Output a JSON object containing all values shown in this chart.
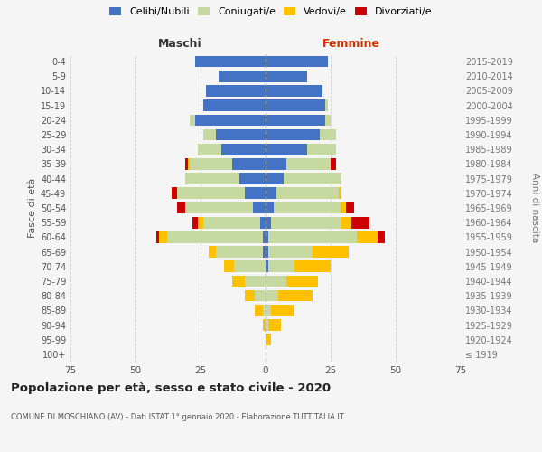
{
  "age_groups": [
    "100+",
    "95-99",
    "90-94",
    "85-89",
    "80-84",
    "75-79",
    "70-74",
    "65-69",
    "60-64",
    "55-59",
    "50-54",
    "45-49",
    "40-44",
    "35-39",
    "30-34",
    "25-29",
    "20-24",
    "15-19",
    "10-14",
    "5-9",
    "0-4"
  ],
  "birth_years": [
    "≤ 1919",
    "1920-1924",
    "1925-1929",
    "1930-1934",
    "1935-1939",
    "1940-1944",
    "1945-1949",
    "1950-1954",
    "1955-1959",
    "1960-1964",
    "1965-1969",
    "1970-1974",
    "1975-1979",
    "1980-1984",
    "1985-1989",
    "1990-1994",
    "1995-1999",
    "2000-2004",
    "2005-2009",
    "2010-2014",
    "2015-2019"
  ],
  "male": {
    "celibi": [
      0,
      0,
      0,
      0,
      0,
      0,
      0,
      1,
      1,
      2,
      5,
      8,
      10,
      13,
      17,
      19,
      27,
      24,
      23,
      18,
      27
    ],
    "coniugati": [
      0,
      0,
      0,
      1,
      4,
      8,
      12,
      18,
      37,
      22,
      26,
      26,
      21,
      16,
      9,
      5,
      2,
      0,
      0,
      0,
      0
    ],
    "vedovi": [
      0,
      0,
      1,
      3,
      4,
      5,
      4,
      3,
      3,
      2,
      0,
      0,
      0,
      1,
      0,
      0,
      0,
      0,
      0,
      0,
      0
    ],
    "divorziati": [
      0,
      0,
      0,
      0,
      0,
      0,
      0,
      0,
      1,
      2,
      3,
      2,
      0,
      1,
      0,
      0,
      0,
      0,
      0,
      0,
      0
    ]
  },
  "female": {
    "nubili": [
      0,
      0,
      0,
      0,
      0,
      0,
      1,
      1,
      1,
      2,
      3,
      4,
      7,
      8,
      16,
      21,
      23,
      23,
      22,
      16,
      24
    ],
    "coniugate": [
      0,
      0,
      1,
      2,
      5,
      8,
      10,
      17,
      34,
      27,
      26,
      24,
      22,
      17,
      11,
      6,
      2,
      1,
      0,
      0,
      0
    ],
    "vedove": [
      0,
      2,
      5,
      9,
      13,
      12,
      14,
      14,
      8,
      4,
      2,
      1,
      0,
      0,
      0,
      0,
      0,
      0,
      0,
      0,
      0
    ],
    "divorziate": [
      0,
      0,
      0,
      0,
      0,
      0,
      0,
      0,
      3,
      7,
      3,
      0,
      0,
      2,
      0,
      0,
      0,
      0,
      0,
      0,
      0
    ]
  },
  "colors": {
    "celibi": "#4472c4",
    "coniugati": "#c5d9a0",
    "vedovi": "#ffc000",
    "divorziati": "#cc0000"
  },
  "xlim": 75,
  "title": "Popolazione per età, sesso e stato civile - 2020",
  "subtitle": "COMUNE DI MOSCHIANO (AV) - Dati ISTAT 1° gennaio 2020 - Elaborazione TUTTITALIA.IT",
  "ylabel_left": "Fasce di età",
  "ylabel_right": "Anni di nascita",
  "xlabel_maschi": "Maschi",
  "xlabel_femmine": "Femmine",
  "legend_labels": [
    "Celibi/Nubili",
    "Coniugati/e",
    "Vedovi/e",
    "Divorziati/e"
  ],
  "bg_color": "#f5f5f5",
  "grid_color": "#cccccc"
}
